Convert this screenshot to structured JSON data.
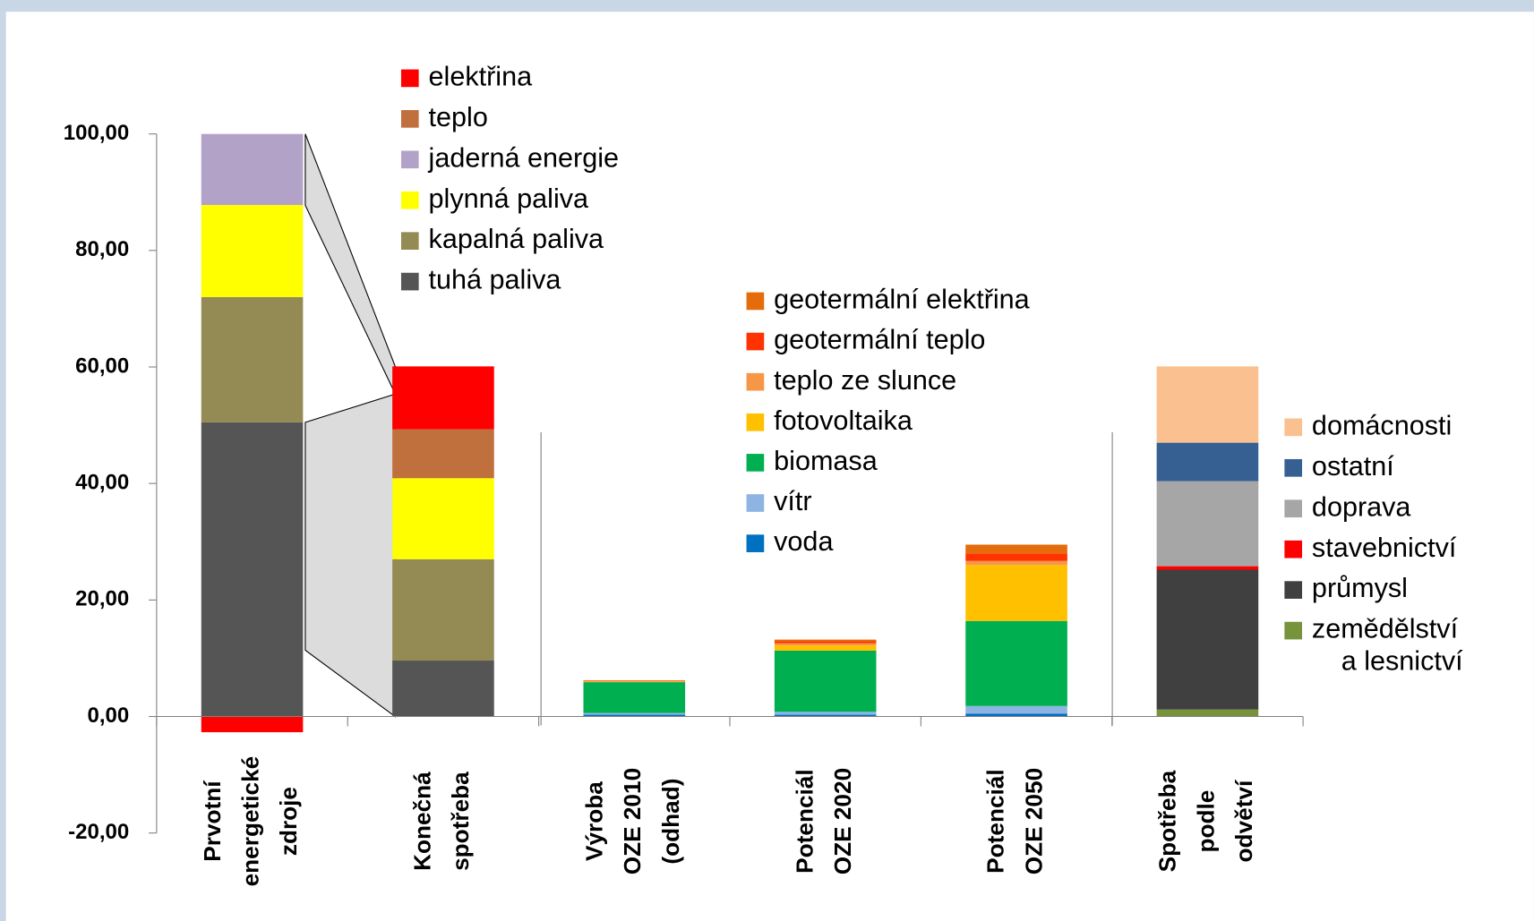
{
  "chart_data": {
    "type": "stacked-bar",
    "categories": [
      [
        "Prvotní",
        "energetické",
        "zdroje"
      ],
      [
        "Konečná",
        "spotřeba"
      ],
      [
        "Výroba",
        "OZE 2010",
        "(odhad)"
      ],
      [
        "Potenciál",
        "OZE 2020"
      ],
      [
        "Potenciál",
        "OZE 2050"
      ],
      [
        "Spotřeba",
        "podle",
        "odvětví"
      ]
    ],
    "ylim": [
      -20,
      100
    ],
    "yticks": [
      {
        "value": -20,
        "label": "-20,00"
      },
      {
        "value": 0,
        "label": "0,00"
      },
      {
        "value": 20,
        "label": "20,00"
      },
      {
        "value": 40,
        "label": "40,00"
      },
      {
        "value": 60,
        "label": "60,00"
      },
      {
        "value": 80,
        "label": "80,00"
      },
      {
        "value": 100,
        "label": "100,00"
      }
    ],
    "grid": false,
    "series": [
      {
        "name": "tuhá paliva",
        "color": "#555555",
        "values": [
          50.5,
          9.6,
          null,
          null,
          null,
          null
        ]
      },
      {
        "name": "kapalná paliva",
        "color": "#948a54",
        "values": [
          21.5,
          17.4,
          null,
          null,
          null,
          null
        ]
      },
      {
        "name": "plynná paliva",
        "color": "#ffff00",
        "values": [
          15.8,
          13.9,
          null,
          null,
          null,
          null
        ]
      },
      {
        "name": "jaderná energie",
        "color": "#b3a2c7",
        "values": [
          12.2,
          null,
          null,
          null,
          null,
          null
        ]
      },
      {
        "name": "teplo",
        "color": "#c0703d",
        "values": [
          null,
          8.4,
          null,
          null,
          null,
          null
        ]
      },
      {
        "name": "elektřina",
        "color": "#ff0000",
        "values": [
          -2.7,
          10.8,
          null,
          null,
          null,
          null
        ]
      },
      {
        "name": "voda",
        "color": "#0070c0",
        "values": [
          null,
          null,
          0.3,
          0.3,
          0.5,
          null
        ]
      },
      {
        "name": "vítr",
        "color": "#8db4e2",
        "values": [
          null,
          null,
          0.3,
          0.5,
          1.3,
          null
        ]
      },
      {
        "name": "biomasa",
        "color": "#00b050",
        "values": [
          null,
          null,
          5.3,
          10.5,
          14.6,
          null
        ]
      },
      {
        "name": "fotovoltaika",
        "color": "#ffc000",
        "values": [
          null,
          null,
          0.1,
          0.9,
          9.6,
          null
        ]
      },
      {
        "name": "teplo ze slunce",
        "color": "#f79646",
        "values": [
          null,
          null,
          0.1,
          0.4,
          0.7,
          null
        ]
      },
      {
        "name": "geotermální teplo",
        "color": "#ff3300",
        "values": [
          null,
          null,
          0.1,
          0.3,
          1.3,
          null
        ]
      },
      {
        "name": "geotermální elektřina",
        "color": "#e46c0a",
        "values": [
          null,
          null,
          null,
          0.3,
          1.5,
          null
        ]
      },
      {
        "name": [
          "zemědělství",
          "a lesnictví"
        ],
        "color": "#77933c",
        "values": [
          null,
          null,
          null,
          null,
          null,
          1.2
        ]
      },
      {
        "name": "průmysl",
        "color": "#404040",
        "values": [
          null,
          null,
          null,
          null,
          null,
          24.0
        ]
      },
      {
        "name": "stavebnictví",
        "color": "#ff0000",
        "values": [
          null,
          null,
          null,
          null,
          null,
          0.6
        ]
      },
      {
        "name": "doprava",
        "color": "#a6a6a6",
        "values": [
          null,
          null,
          null,
          null,
          null,
          14.6
        ]
      },
      {
        "name": "ostatní",
        "color": "#376092",
        "values": [
          null,
          null,
          null,
          null,
          null,
          6.6
        ]
      },
      {
        "name": "domácnosti",
        "color": "#fac090",
        "values": [
          null,
          null,
          null,
          null,
          null,
          13.1
        ]
      }
    ]
  }
}
